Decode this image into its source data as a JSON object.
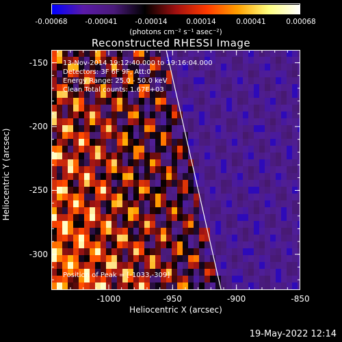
{
  "colorbar": {
    "tick_labels": [
      "-0.00068",
      "-0.00041",
      "-0.00014",
      "0.00014",
      "0.00041",
      "0.00068"
    ],
    "unit_label": "(photons cm⁻² s⁻¹ asec⁻²)",
    "range": [
      -0.00068,
      0.00068
    ],
    "colors": [
      "#0000ff",
      "#5a1aa8",
      "#4a1a7a",
      "#000000",
      "#a01010",
      "#ff3a00",
      "#ffa000",
      "#ffff80",
      "#ffffff"
    ]
  },
  "annotations": {
    "time_range": "13-Nov-2014 19:12:40.000 to 19:16:04.000",
    "detectors": "Detectors: 3F 6F 9F, Att:0",
    "energy": "Energy Range: 25.0 - 50.0 keV",
    "clean": "Clean    Total counts: 1.67E+03",
    "peak": "Position of Peak = [-1033,-309]"
  },
  "footer": "19-May-2022 12:14",
  "chart_data": {
    "type": "heatmap",
    "title": "Reconstructed RHESSI Image",
    "xlabel": "Heliocentric X (arcsec)",
    "ylabel": "Heliocentric Y (arcsec)",
    "xlim": [
      -1045,
      -850
    ],
    "ylim": [
      -328,
      -140
    ],
    "x_ticks": [
      -1000,
      -950,
      -900,
      -850
    ],
    "y_ticks": [
      -150,
      -200,
      -250,
      -300
    ],
    "limb_line": [
      [
        -955,
        -140
      ],
      [
        -912,
        -328
      ]
    ],
    "peak": [
      -1033,
      -309
    ]
  }
}
